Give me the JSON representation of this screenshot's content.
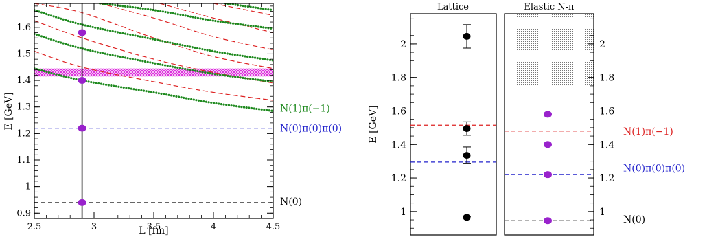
{
  "chart_data": [
    {
      "type": "line",
      "xlabel": "L [fm]",
      "ylabel": "E [GeV]",
      "xlim": [
        2.5,
        4.5
      ],
      "ylim": [
        0.88,
        1.69
      ],
      "xticks": [
        "2.5",
        "3",
        "3.5",
        "4",
        "4.5"
      ],
      "yticks": [
        "0.9",
        "1",
        "1.1",
        "1.2",
        "1.3",
        "1.4",
        "1.5",
        "1.6"
      ],
      "vertical_line_x": 2.9,
      "band": {
        "ymin": 1.415,
        "ymax": 1.445,
        "color": "#dd33dd"
      },
      "horizontal_lines": [
        {
          "label": "N(0)",
          "y": 0.94,
          "color": "#333333"
        },
        {
          "label": "N(0)π(0)π(0)",
          "y": 1.22,
          "color": "#2222cc"
        }
      ],
      "green_curves": [
        {
          "x": [
            2.5,
            2.9,
            3.5,
            4.0,
            4.5
          ],
          "y": [
            1.445,
            1.4,
            1.355,
            1.315,
            1.285
          ]
        },
        {
          "x": [
            2.5,
            2.9,
            3.5,
            4.0,
            4.5
          ],
          "y": [
            1.575,
            1.52,
            1.465,
            1.425,
            1.395
          ]
        },
        {
          "x": [
            2.5,
            2.9,
            3.5,
            4.0,
            4.5
          ],
          "y": [
            1.665,
            1.61,
            1.555,
            1.51,
            1.475
          ]
        },
        {
          "x": [
            3.05,
            3.5,
            4.0,
            4.5
          ],
          "y": [
            1.69,
            1.665,
            1.625,
            1.595
          ]
        },
        {
          "x": [
            4.1,
            4.5
          ],
          "y": [
            1.69,
            1.665
          ]
        }
      ],
      "red_dashed_curves": [
        {
          "x": [
            2.5,
            2.9,
            3.5,
            4.0,
            4.5
          ],
          "y": [
            1.51,
            1.45,
            1.395,
            1.355,
            1.325
          ]
        },
        {
          "x": [
            2.5,
            2.9,
            3.5,
            4.0,
            4.5
          ],
          "y": [
            1.625,
            1.56,
            1.48,
            1.43,
            1.39
          ]
        },
        {
          "x": [
            2.5,
            2.9,
            3.5,
            4.0,
            4.5
          ],
          "y": [
            1.69,
            1.655,
            1.56,
            1.49,
            1.445
          ]
        },
        {
          "x": [
            3.05,
            3.5,
            4.0,
            4.5
          ],
          "y": [
            1.69,
            1.635,
            1.565,
            1.515
          ]
        },
        {
          "x": [
            3.55,
            4.0,
            4.5
          ],
          "y": [
            1.69,
            1.635,
            1.58
          ]
        },
        {
          "x": [
            4.0,
            4.5
          ],
          "y": [
            1.69,
            1.645
          ]
        }
      ],
      "points": [
        {
          "x": 2.9,
          "y": 0.94
        },
        {
          "x": 2.9,
          "y": 1.22
        },
        {
          "x": 2.9,
          "y": 1.4
        },
        {
          "x": 2.9,
          "y": 1.58
        }
      ],
      "labels": [
        {
          "text": "N(1)π(−1)",
          "color": "#1f8a1f",
          "y": 1.295
        },
        {
          "text": "N(0)π(0)π(0)",
          "color": "#2222cc",
          "y": 1.22
        },
        {
          "text": "N(0)",
          "color": "#000000",
          "y": 0.945
        }
      ]
    },
    {
      "type": "scatter",
      "title": "Lattice",
      "ylabel": "E [GeV]",
      "ylim": [
        0.86,
        2.18
      ],
      "yticks": [
        "1",
        "1.2",
        "1.4",
        "1.6",
        "1.8",
        "2"
      ],
      "horizontal_lines": [
        {
          "y": 1.515,
          "color": "#dd2222"
        },
        {
          "y": 1.295,
          "color": "#2222cc"
        }
      ],
      "points": [
        {
          "y": 0.965,
          "err": 0.005
        },
        {
          "y": 1.335,
          "err": 0.05
        },
        {
          "y": 1.495,
          "err": 0.04
        },
        {
          "y": 2.045,
          "err": 0.07
        }
      ]
    },
    {
      "type": "scatter",
      "title": "Elastic N-π",
      "ylim": [
        0.86,
        2.18
      ],
      "yticks": [
        "1",
        "1.2",
        "1.4",
        "1.6",
        "1.8",
        "2"
      ],
      "shaded_region": {
        "ymin": 1.71,
        "ymax": 2.18
      },
      "horizontal_lines": [
        {
          "y": 1.48,
          "color": "#dd2222"
        },
        {
          "y": 1.22,
          "color": "#2222cc"
        },
        {
          "y": 0.945,
          "color": "#333333"
        }
      ],
      "points": [
        {
          "y": 0.945
        },
        {
          "y": 1.22
        },
        {
          "y": 1.4
        },
        {
          "y": 1.58
        }
      ],
      "labels": [
        {
          "text": "N(1)π(−1)",
          "color": "#dd2222",
          "y": 1.48
        },
        {
          "text": "N(0)π(0)π(0)",
          "color": "#2222cc",
          "y": 1.26
        },
        {
          "text": "N(0)",
          "color": "#000000",
          "y": 0.955
        }
      ]
    }
  ]
}
